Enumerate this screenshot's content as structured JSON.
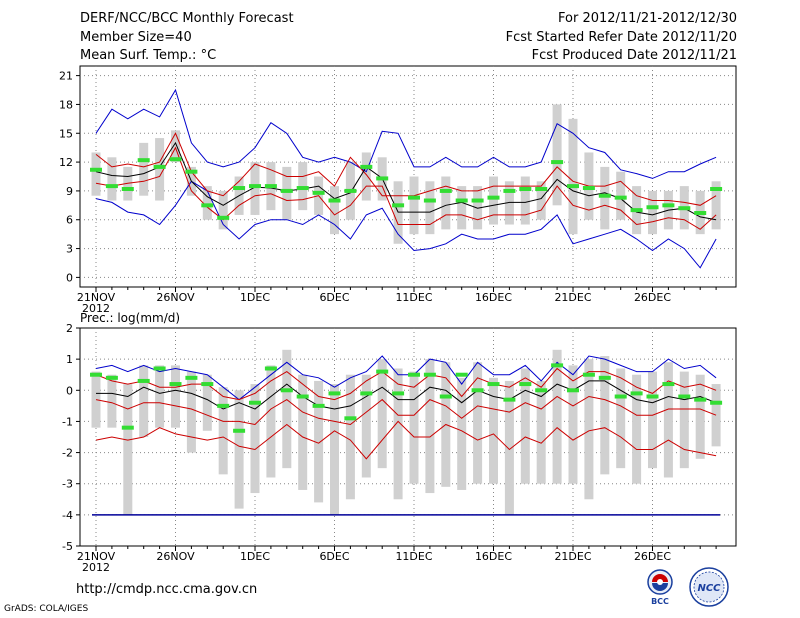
{
  "header": {
    "title": "DERF/NCC/BCC Monthly Forecast",
    "member_size": "Member Size=40",
    "variable_temp": "Mean Surf. Temp.: °C",
    "period": "For 2012/11/21-2012/12/30",
    "started": "Fcst Started Refer Date 2012/11/20",
    "produced": "Fcst Produced Date 2012/11/21"
  },
  "footer": {
    "url": "http://cmdp.ncc.cma.gov.cn",
    "grads": "GrADS: COLA/IGES",
    "logo1_text": "BCC",
    "logo2_text": "NCC"
  },
  "colors": {
    "blue": "#0000cc",
    "red": "#cc0000",
    "green": "#33dd33",
    "box": "#d0d0d0"
  },
  "chart_data": [
    {
      "type": "line",
      "title": "Mean Surf. Temp.: °C",
      "ylim": [
        -1,
        22
      ],
      "yticks": [
        0,
        3,
        6,
        9,
        12,
        15,
        18,
        21
      ],
      "x_tick_labels": [
        "21NOV",
        "26NOV",
        "1DEC",
        "6DEC",
        "11DEC",
        "16DEC",
        "21DEC",
        "26DEC"
      ],
      "x_tick_days": [
        1,
        6,
        11,
        16,
        21,
        26,
        31,
        36
      ],
      "year_label": "2012",
      "days": 40,
      "series": [
        {
          "name": "max",
          "color": "#0000cc",
          "values": [
            15.0,
            17.5,
            16.5,
            17.5,
            16.7,
            19.5,
            14.0,
            12.0,
            11.5,
            12.0,
            13.5,
            16.1,
            15.0,
            12.5,
            12.0,
            12.5,
            12.0,
            11.0,
            15.2,
            15.0,
            11.5,
            11.5,
            12.5,
            11.5,
            11.5,
            12.5,
            11.5,
            11.5,
            12.0,
            16.0,
            15.0,
            13.5,
            13.0,
            11.2,
            10.8,
            10.3,
            11.0,
            11.0,
            11.8,
            12.5
          ]
        },
        {
          "name": "upper",
          "color": "#cc0000",
          "values": [
            12.8,
            11.5,
            11.8,
            11.5,
            12.0,
            15.0,
            11.0,
            9.0,
            8.5,
            10.0,
            11.8,
            11.2,
            10.5,
            10.5,
            11.0,
            9.5,
            12.5,
            10.7,
            8.5,
            8.5,
            8.5,
            9.0,
            9.5,
            9.0,
            9.0,
            9.5,
            9.5,
            9.5,
            9.5,
            11.5,
            10.0,
            9.5,
            9.5,
            10.0,
            8.5,
            8.0,
            8.0,
            7.8,
            7.5,
            8.5
          ]
        },
        {
          "name": "median",
          "color": "#000000",
          "values": [
            11.0,
            10.6,
            10.5,
            10.8,
            11.5,
            14.0,
            10.0,
            8.4,
            7.5,
            8.5,
            9.4,
            9.3,
            9.0,
            9.2,
            9.5,
            8.2,
            8.8,
            11.5,
            10.3,
            6.8,
            6.8,
            6.8,
            7.5,
            7.8,
            7.2,
            7.5,
            7.8,
            7.8,
            8.2,
            10.2,
            9.0,
            8.5,
            8.8,
            8.2,
            6.8,
            6.5,
            7.0,
            7.2,
            6.3,
            6.0
          ]
        },
        {
          "name": "lower",
          "color": "#cc0000",
          "values": [
            9.8,
            9.5,
            9.8,
            10.0,
            10.5,
            13.5,
            9.0,
            7.3,
            6.0,
            7.5,
            8.5,
            8.7,
            8.0,
            8.1,
            8.5,
            6.5,
            7.5,
            9.5,
            9.5,
            5.5,
            5.5,
            5.5,
            6.5,
            6.5,
            6.0,
            6.5,
            6.5,
            6.5,
            7.0,
            9.5,
            7.5,
            7.0,
            7.5,
            7.0,
            5.5,
            5.8,
            6.2,
            6.0,
            5.0,
            6.5
          ]
        },
        {
          "name": "min",
          "color": "#0000cc",
          "values": [
            8.2,
            7.8,
            6.8,
            6.5,
            5.5,
            7.5,
            10.0,
            9.0,
            5.5,
            4.0,
            5.5,
            6.0,
            6.0,
            5.5,
            6.5,
            5.5,
            4.0,
            6.5,
            7.2,
            4.5,
            2.8,
            3.0,
            3.5,
            4.5,
            4.0,
            4.0,
            4.5,
            4.5,
            5.0,
            6.5,
            3.5,
            4.0,
            4.5,
            5.0,
            4.0,
            2.8,
            4.0,
            3.0,
            1.0,
            4.0
          ]
        },
        {
          "name": "ens_mean",
          "color": "#33dd33",
          "values": [
            11.2,
            9.5,
            9.2,
            12.2,
            11.5,
            12.3,
            11.0,
            7.5,
            6.2,
            9.3,
            9.5,
            9.5,
            9.0,
            9.3,
            8.8,
            8.0,
            9.0,
            11.5,
            10.3,
            7.5,
            8.3,
            8.0,
            9.0,
            8.0,
            8.0,
            8.3,
            9.0,
            9.2,
            9.2,
            12.0,
            9.5,
            9.3,
            8.5,
            8.3,
            7.0,
            7.3,
            7.5,
            7.2,
            6.7,
            9.2
          ]
        },
        {
          "name": "box_high",
          "values": [
            13.0,
            12.5,
            11.5,
            14.0,
            14.5,
            15.3,
            11.5,
            9.5,
            9.0,
            10.5,
            12.0,
            12.0,
            11.5,
            12.0,
            10.5,
            9.5,
            12.0,
            13.0,
            12.5,
            10.0,
            10.5,
            10.0,
            10.5,
            9.5,
            9.5,
            10.5,
            10.0,
            10.5,
            10.0,
            18.0,
            16.5,
            13.0,
            11.5,
            11.0,
            9.5,
            9.0,
            9.0,
            9.5,
            9.0,
            10.0
          ]
        },
        {
          "name": "box_low",
          "values": [
            8.5,
            8.0,
            8.0,
            8.5,
            8.0,
            12.0,
            8.5,
            6.0,
            5.0,
            6.5,
            6.5,
            7.0,
            6.0,
            7.0,
            6.5,
            4.5,
            6.0,
            8.0,
            8.0,
            3.5,
            4.5,
            4.5,
            5.0,
            5.0,
            5.0,
            5.5,
            5.5,
            5.5,
            6.0,
            7.5,
            4.5,
            6.0,
            5.0,
            6.0,
            4.5,
            4.5,
            5.0,
            5.0,
            4.5,
            5.0
          ]
        }
      ]
    },
    {
      "type": "line",
      "title": "Prec.: log(mm/d)",
      "ylim": [
        -5,
        2
      ],
      "yticks": [
        -5,
        -4,
        -3,
        -2,
        -1,
        0,
        1,
        2
      ],
      "x_tick_labels": [
        "21NOV",
        "26NOV",
        "1DEC",
        "6DEC",
        "11DEC",
        "16DEC",
        "21DEC",
        "26DEC"
      ],
      "x_tick_days": [
        1,
        6,
        11,
        16,
        21,
        26,
        31,
        36
      ],
      "year_label": "2012",
      "days": 40,
      "floor": -4,
      "series": [
        {
          "name": "max",
          "color": "#0000cc",
          "values": [
            0.7,
            0.8,
            0.6,
            0.8,
            0.6,
            0.7,
            0.6,
            0.5,
            0.1,
            -0.3,
            0.1,
            0.5,
            0.9,
            0.5,
            0.4,
            0.1,
            0.4,
            0.6,
            1.1,
            0.5,
            0.5,
            1.0,
            0.9,
            0.2,
            0.9,
            0.5,
            0.5,
            0.8,
            0.3,
            0.9,
            0.5,
            1.1,
            1.0,
            0.8,
            0.6,
            0.6,
            1.0,
            0.7,
            0.8,
            0.4
          ]
        },
        {
          "name": "upper",
          "color": "#cc0000",
          "values": [
            0.5,
            0.3,
            0.2,
            0.3,
            0.1,
            0.1,
            0.2,
            0.2,
            -0.2,
            -0.3,
            -0.1,
            0.3,
            0.6,
            0.2,
            -0.2,
            -0.3,
            -0.1,
            0.3,
            0.6,
            0.2,
            0.1,
            0.5,
            0.4,
            -0.2,
            0.4,
            0.2,
            0.1,
            0.4,
            0.1,
            0.7,
            0.3,
            0.6,
            0.6,
            0.4,
            0.1,
            -0.1,
            0.3,
            0.1,
            0.2,
            0.0
          ]
        },
        {
          "name": "median",
          "color": "#000000",
          "values": [
            -0.1,
            -0.1,
            -0.2,
            0.1,
            -0.1,
            0.0,
            -0.1,
            -0.3,
            -0.6,
            -0.4,
            -0.6,
            -0.2,
            0.2,
            -0.2,
            -0.5,
            -0.6,
            -0.5,
            -0.2,
            0.1,
            -0.3,
            -0.3,
            0.1,
            0.0,
            -0.4,
            0.0,
            -0.2,
            -0.3,
            0.0,
            -0.2,
            0.2,
            0.0,
            0.3,
            0.3,
            0.0,
            -0.3,
            -0.4,
            -0.2,
            -0.3,
            -0.2,
            -0.4
          ]
        },
        {
          "name": "lower",
          "color": "#cc0000",
          "values": [
            -0.3,
            -0.4,
            -0.6,
            -0.4,
            -0.4,
            -0.5,
            -0.6,
            -0.8,
            -1.0,
            -1.0,
            -1.1,
            -0.6,
            -0.3,
            -0.7,
            -0.9,
            -1.0,
            -1.1,
            -0.7,
            -0.3,
            -0.8,
            -0.8,
            -0.3,
            -0.5,
            -0.9,
            -0.5,
            -0.6,
            -0.7,
            -0.4,
            -0.6,
            -0.2,
            -0.5,
            -0.2,
            -0.3,
            -0.5,
            -0.8,
            -0.8,
            -0.6,
            -0.6,
            -0.6,
            -0.8
          ]
        },
        {
          "name": "min",
          "color": "#cc0000",
          "values": [
            -1.6,
            -1.5,
            -1.6,
            -1.5,
            -1.2,
            -1.4,
            -1.5,
            -1.6,
            -1.5,
            -1.8,
            -1.9,
            -1.5,
            -1.1,
            -1.5,
            -1.7,
            -1.3,
            -1.6,
            -2.2,
            -1.6,
            -1.0,
            -1.5,
            -1.5,
            -1.1,
            -1.3,
            -1.6,
            -1.4,
            -1.9,
            -1.5,
            -1.7,
            -1.2,
            -1.6,
            -1.3,
            -1.2,
            -1.5,
            -1.9,
            -1.9,
            -1.6,
            -1.9,
            -2.0,
            -2.1
          ]
        },
        {
          "name": "ens_mean",
          "color": "#33dd33",
          "values": [
            0.5,
            0.4,
            -1.2,
            0.3,
            0.7,
            0.2,
            0.4,
            0.2,
            -0.5,
            -1.3,
            -0.4,
            0.7,
            0.0,
            -0.2,
            -0.5,
            -0.1,
            -0.9,
            -0.1,
            0.6,
            -0.1,
            0.5,
            0.5,
            -0.2,
            0.5,
            0.0,
            0.2,
            -0.3,
            0.2,
            0.0,
            0.8,
            0.0,
            0.5,
            0.4,
            -0.2,
            -0.1,
            -0.2,
            0.2,
            -0.2,
            -0.3,
            -0.4
          ]
        },
        {
          "name": "box_high",
          "values": [
            0.6,
            0.5,
            0.2,
            0.8,
            0.8,
            0.8,
            0.6,
            0.5,
            0.1,
            0.0,
            0.2,
            0.8,
            1.3,
            0.5,
            0.3,
            0.2,
            0.5,
            0.5,
            1.0,
            0.7,
            0.6,
            1.0,
            0.9,
            0.4,
            0.9,
            0.4,
            0.3,
            0.7,
            0.3,
            1.3,
            0.8,
            1.0,
            1.1,
            0.7,
            0.5,
            0.6,
            0.9,
            0.6,
            0.5,
            0.2
          ]
        },
        {
          "name": "box_low",
          "values": [
            -1.2,
            -1.2,
            -4.0,
            -1.5,
            -1.2,
            -1.2,
            -2.0,
            -1.3,
            -2.7,
            -3.8,
            -3.3,
            -2.8,
            -2.5,
            -3.2,
            -3.6,
            -4.0,
            -3.5,
            -2.8,
            -2.5,
            -3.5,
            -3.0,
            -3.3,
            -3.1,
            -3.2,
            -3.0,
            -3.0,
            -4.0,
            -3.0,
            -3.0,
            -3.0,
            -3.0,
            -3.5,
            -2.7,
            -2.5,
            -3.0,
            -2.5,
            -2.8,
            -2.5,
            -2.2,
            -1.8
          ]
        }
      ]
    }
  ]
}
